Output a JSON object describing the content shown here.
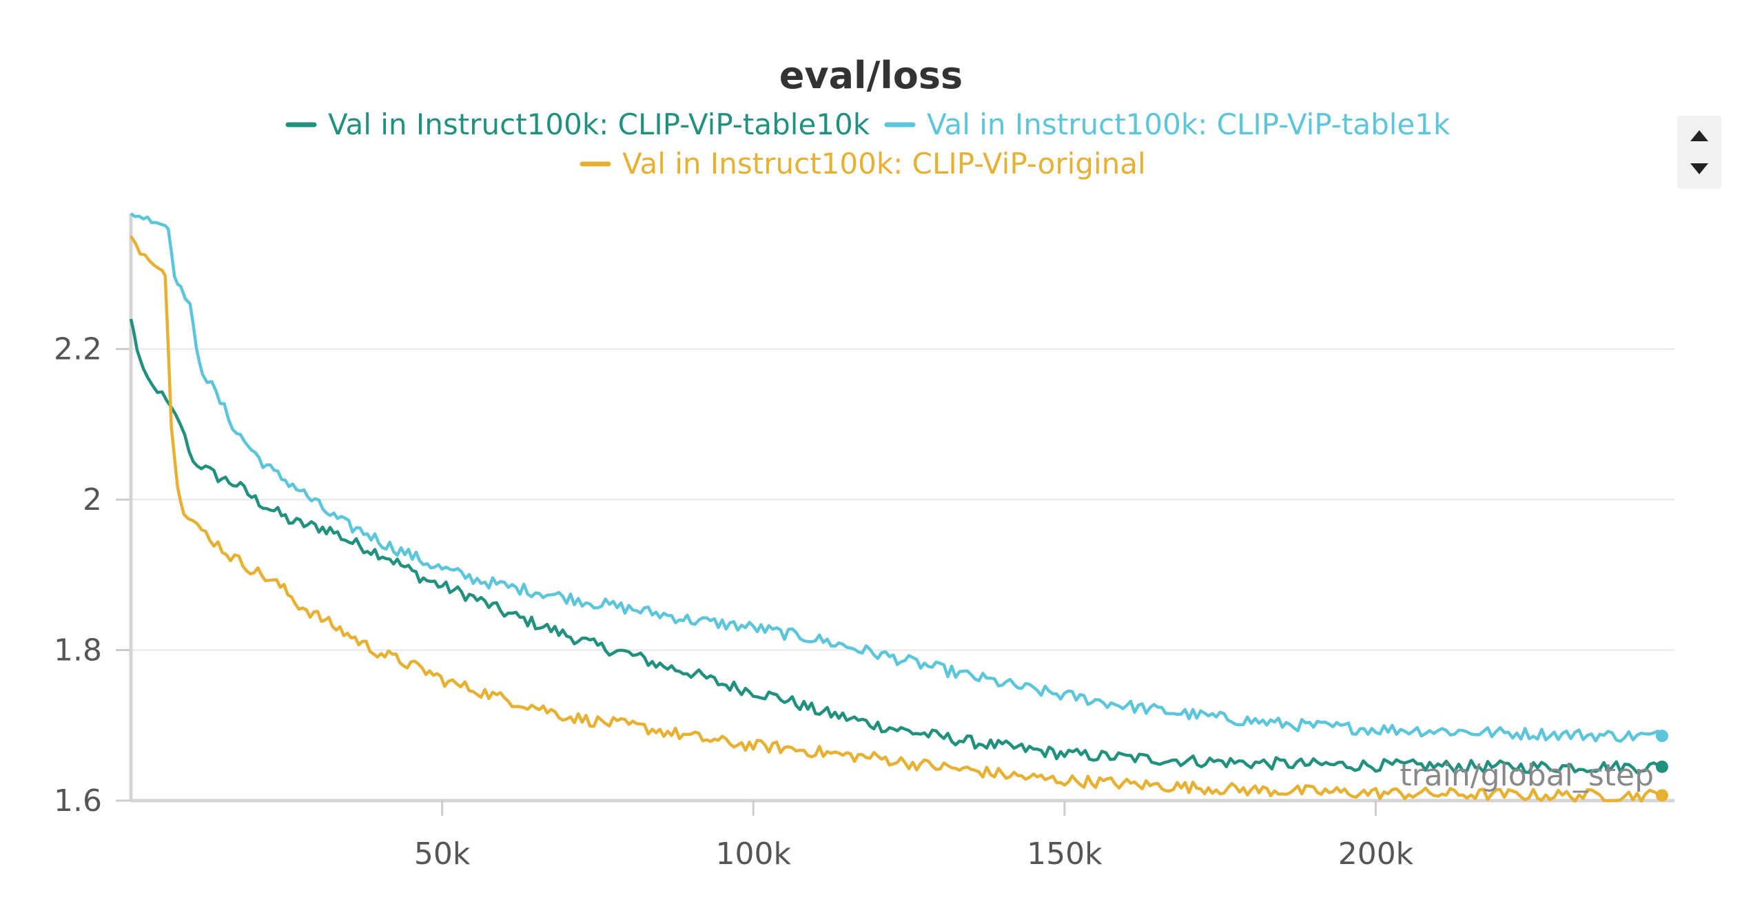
{
  "chart_data": {
    "type": "line",
    "title": "eval/loss",
    "xlabel": "train/global_step",
    "ylabel": "",
    "xlim": [
      0,
      248000
    ],
    "ylim": [
      1.6,
      2.38
    ],
    "x_ticks": [
      50000,
      100000,
      150000,
      200000
    ],
    "x_tick_labels": [
      "50k",
      "100k",
      "150k",
      "200k"
    ],
    "y_ticks": [
      1.6,
      1.8,
      2.0,
      2.2
    ],
    "y_tick_labels": [
      "1.6",
      "1.8",
      "2",
      "2.2"
    ],
    "grid": "horizontal",
    "legend_position": "top-center",
    "series": [
      {
        "name": "Val in Instruct100k: CLIP-ViP-table10k",
        "color": "#21917f",
        "points": [
          [
            0,
            2.24
          ],
          [
            1000,
            2.2
          ],
          [
            2000,
            2.17
          ],
          [
            3500,
            2.15
          ],
          [
            5000,
            2.14
          ],
          [
            6500,
            2.12
          ],
          [
            8000,
            2.1
          ],
          [
            10000,
            2.05
          ],
          [
            12000,
            2.04
          ],
          [
            14000,
            2.03
          ],
          [
            17000,
            2.02
          ],
          [
            20000,
            2.0
          ],
          [
            23000,
            1.985
          ],
          [
            26000,
            1.97
          ],
          [
            29000,
            1.965
          ],
          [
            32000,
            1.96
          ],
          [
            35000,
            1.945
          ],
          [
            38000,
            1.935
          ],
          [
            41000,
            1.925
          ],
          [
            44000,
            1.91
          ],
          [
            47000,
            1.895
          ],
          [
            50000,
            1.885
          ],
          [
            55000,
            1.87
          ],
          [
            60000,
            1.85
          ],
          [
            65000,
            1.835
          ],
          [
            70000,
            1.82
          ],
          [
            75000,
            1.805
          ],
          [
            80000,
            1.795
          ],
          [
            85000,
            1.78
          ],
          [
            90000,
            1.77
          ],
          [
            95000,
            1.755
          ],
          [
            100000,
            1.745
          ],
          [
            105000,
            1.735
          ],
          [
            110000,
            1.72
          ],
          [
            115000,
            1.71
          ],
          [
            120000,
            1.7
          ],
          [
            125000,
            1.692
          ],
          [
            130000,
            1.685
          ],
          [
            135000,
            1.678
          ],
          [
            140000,
            1.672
          ],
          [
            145000,
            1.667
          ],
          [
            150000,
            1.662
          ],
          [
            160000,
            1.657
          ],
          [
            170000,
            1.653
          ],
          [
            180000,
            1.65
          ],
          [
            190000,
            1.648
          ],
          [
            200000,
            1.647
          ],
          [
            210000,
            1.646
          ],
          [
            220000,
            1.645
          ],
          [
            230000,
            1.645
          ],
          [
            240000,
            1.645
          ],
          [
            246000,
            1.645
          ]
        ]
      },
      {
        "name": "Val in Instruct100k: CLIP-ViP-table1k",
        "color": "#5bc5db",
        "points": [
          [
            0,
            2.38
          ],
          [
            2000,
            2.375
          ],
          [
            4000,
            2.37
          ],
          [
            5500,
            2.365
          ],
          [
            6000,
            2.36
          ],
          [
            7000,
            2.3
          ],
          [
            8000,
            2.28
          ],
          [
            9500,
            2.26
          ],
          [
            10500,
            2.2
          ],
          [
            11500,
            2.17
          ],
          [
            13000,
            2.15
          ],
          [
            15000,
            2.12
          ],
          [
            17000,
            2.09
          ],
          [
            20000,
            2.06
          ],
          [
            23000,
            2.035
          ],
          [
            26000,
            2.02
          ],
          [
            29000,
            2.0
          ],
          [
            32000,
            1.98
          ],
          [
            35000,
            1.965
          ],
          [
            38000,
            1.955
          ],
          [
            41000,
            1.94
          ],
          [
            44000,
            1.93
          ],
          [
            47000,
            1.918
          ],
          [
            50000,
            1.908
          ],
          [
            55000,
            1.895
          ],
          [
            60000,
            1.885
          ],
          [
            65000,
            1.878
          ],
          [
            70000,
            1.87
          ],
          [
            75000,
            1.862
          ],
          [
            80000,
            1.855
          ],
          [
            85000,
            1.848
          ],
          [
            90000,
            1.84
          ],
          [
            95000,
            1.835
          ],
          [
            100000,
            1.83
          ],
          [
            105000,
            1.822
          ],
          [
            110000,
            1.815
          ],
          [
            115000,
            1.805
          ],
          [
            120000,
            1.795
          ],
          [
            125000,
            1.785
          ],
          [
            130000,
            1.775
          ],
          [
            135000,
            1.765
          ],
          [
            140000,
            1.756
          ],
          [
            145000,
            1.747
          ],
          [
            150000,
            1.74
          ],
          [
            155000,
            1.733
          ],
          [
            160000,
            1.726
          ],
          [
            165000,
            1.72
          ],
          [
            170000,
            1.715
          ],
          [
            175000,
            1.71
          ],
          [
            180000,
            1.706
          ],
          [
            185000,
            1.702
          ],
          [
            190000,
            1.699
          ],
          [
            195000,
            1.697
          ],
          [
            200000,
            1.695
          ],
          [
            210000,
            1.693
          ],
          [
            220000,
            1.69
          ],
          [
            230000,
            1.688
          ],
          [
            240000,
            1.686
          ],
          [
            246000,
            1.686
          ]
        ]
      },
      {
        "name": "Val in Instruct100k: CLIP-ViP-original",
        "color": "#e8b030",
        "points": [
          [
            0,
            2.35
          ],
          [
            1500,
            2.33
          ],
          [
            3000,
            2.32
          ],
          [
            4500,
            2.31
          ],
          [
            5000,
            2.305
          ],
          [
            5500,
            2.3
          ],
          [
            6500,
            2.1
          ],
          [
            7500,
            2.02
          ],
          [
            8500,
            1.98
          ],
          [
            10000,
            1.97
          ],
          [
            12000,
            1.955
          ],
          [
            14000,
            1.94
          ],
          [
            16000,
            1.925
          ],
          [
            18000,
            1.915
          ],
          [
            21000,
            1.9
          ],
          [
            24000,
            1.885
          ],
          [
            27000,
            1.86
          ],
          [
            30000,
            1.845
          ],
          [
            33000,
            1.83
          ],
          [
            36000,
            1.815
          ],
          [
            39000,
            1.8
          ],
          [
            42000,
            1.79
          ],
          [
            45000,
            1.78
          ],
          [
            48000,
            1.77
          ],
          [
            51000,
            1.757
          ],
          [
            55000,
            1.748
          ],
          [
            60000,
            1.735
          ],
          [
            65000,
            1.725
          ],
          [
            70000,
            1.712
          ],
          [
            75000,
            1.705
          ],
          [
            80000,
            1.7
          ],
          [
            85000,
            1.693
          ],
          [
            90000,
            1.685
          ],
          [
            95000,
            1.678
          ],
          [
            100000,
            1.673
          ],
          [
            105000,
            1.67
          ],
          [
            110000,
            1.665
          ],
          [
            115000,
            1.66
          ],
          [
            120000,
            1.657
          ],
          [
            125000,
            1.65
          ],
          [
            130000,
            1.645
          ],
          [
            135000,
            1.64
          ],
          [
            140000,
            1.635
          ],
          [
            145000,
            1.63
          ],
          [
            150000,
            1.627
          ],
          [
            155000,
            1.625
          ],
          [
            160000,
            1.622
          ],
          [
            165000,
            1.62
          ],
          [
            170000,
            1.618
          ],
          [
            175000,
            1.616
          ],
          [
            180000,
            1.614
          ],
          [
            185000,
            1.613
          ],
          [
            190000,
            1.612
          ],
          [
            195000,
            1.611
          ],
          [
            200000,
            1.61
          ],
          [
            210000,
            1.609
          ],
          [
            220000,
            1.608
          ],
          [
            230000,
            1.607
          ],
          [
            240000,
            1.607
          ],
          [
            246000,
            1.607
          ]
        ]
      }
    ]
  },
  "legend_controls": {
    "up_icon": "triangle-up-icon",
    "down_icon": "triangle-down-icon"
  }
}
